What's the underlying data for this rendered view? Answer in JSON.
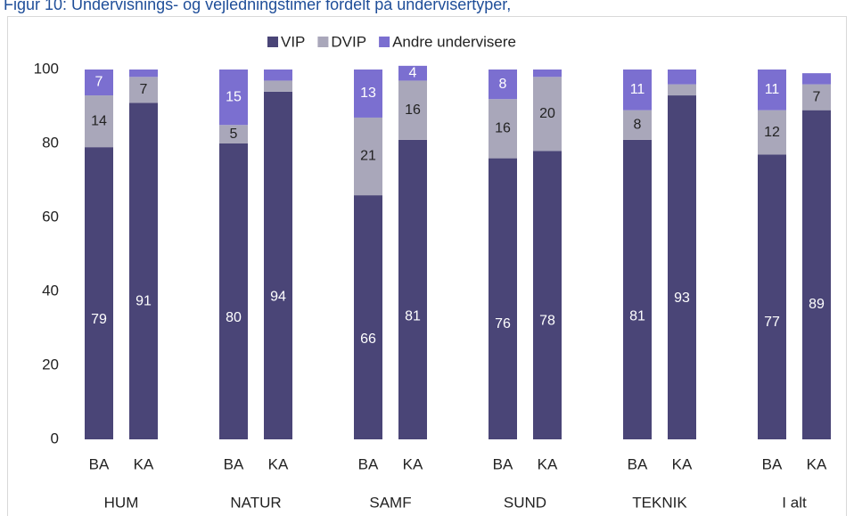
{
  "chart_data": {
    "type": "stacked_bar",
    "title": "Figur 10: Undervisnings- og vejledningstimer fordelt på undervisertyper,",
    "groups": [
      "HUM",
      "NATUR",
      "SAMF",
      "SUND",
      "TEKNIK",
      "I alt"
    ],
    "categories": [
      "BA",
      "KA",
      "BA",
      "KA",
      "BA",
      "KA",
      "BA",
      "KA",
      "BA",
      "KA",
      "BA",
      "KA"
    ],
    "series": [
      {
        "name": "VIP",
        "color": "#4a4577",
        "values": [
          79,
          91,
          80,
          94,
          66,
          81,
          76,
          78,
          81,
          93,
          77,
          89
        ]
      },
      {
        "name": "DVIP",
        "color": "#a9a7ba",
        "values": [
          14,
          7,
          5,
          3,
          21,
          16,
          16,
          20,
          8,
          3,
          12,
          7
        ],
        "value_labels": [
          "14",
          "7",
          "5",
          null,
          "21",
          "16",
          "16",
          "20",
          "8",
          null,
          "12",
          "7"
        ]
      },
      {
        "name": "Andre undervisere",
        "color": "#7b6fd0",
        "values": [
          7,
          2,
          15,
          3,
          13,
          4,
          8,
          2,
          11,
          4,
          11,
          3
        ],
        "value_labels": [
          "7",
          null,
          "15",
          null,
          "13",
          "4",
          "8",
          null,
          "11",
          null,
          "11",
          null
        ]
      }
    ],
    "ylim": [
      0,
      100
    ],
    "yticks": [
      0,
      20,
      40,
      60,
      80,
      100
    ],
    "legend": "top"
  }
}
